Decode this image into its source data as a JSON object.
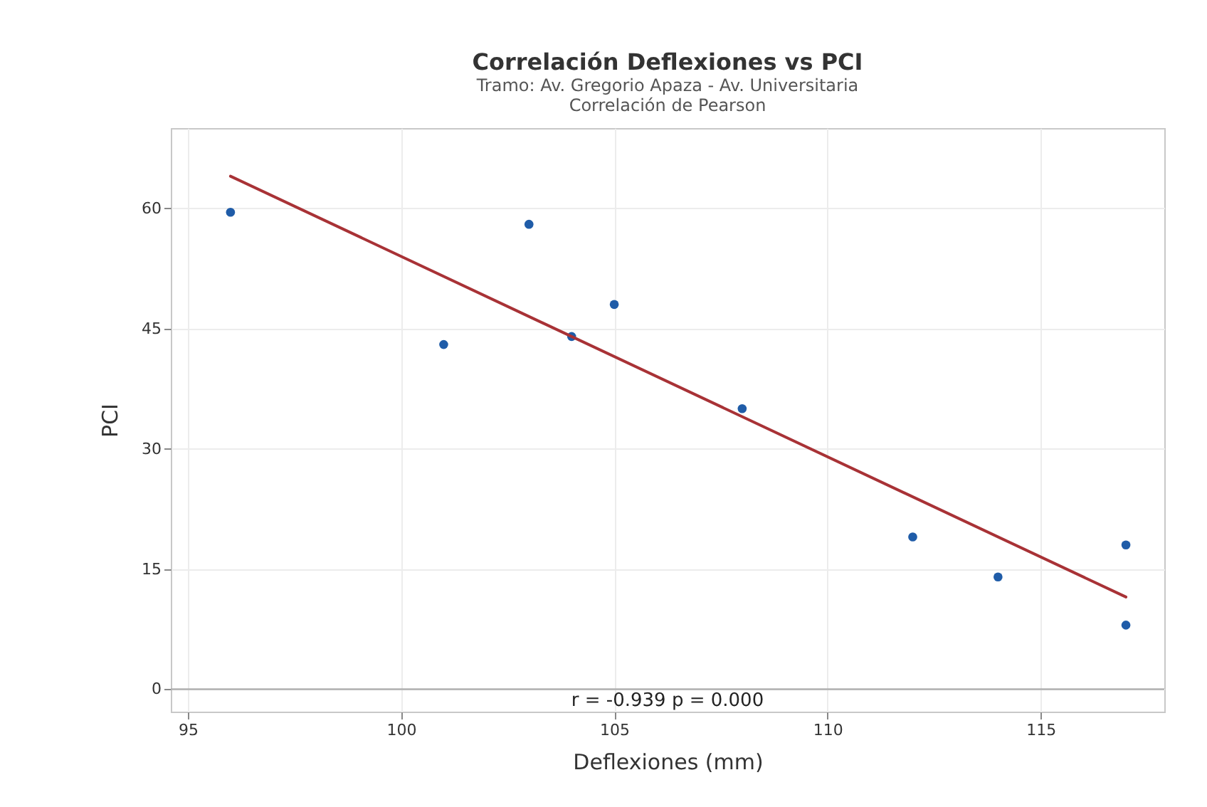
{
  "chart_data": {
    "type": "scatter",
    "title": "Correlación Deflexiones vs PCI",
    "subtitle": [
      "Tramo: Av. Gregorio Apaza - Av. Universitaria",
      "Correlación de Pearson"
    ],
    "xlabel": "Deflexiones (mm)",
    "ylabel": "PCI",
    "xlim": [
      94.6,
      117.9
    ],
    "xticks": [
      95,
      100,
      105,
      110,
      115
    ],
    "ylim": [
      -2.8,
      70
    ],
    "yticks": [
      0,
      15,
      30,
      45,
      60
    ],
    "grid": true,
    "series": [
      {
        "marker": "circle",
        "color": "#1f5ca8",
        "x": [
          96,
          101,
          103,
          104,
          105,
          108,
          112,
          114,
          117,
          117
        ],
        "values": [
          59.5,
          43,
          58,
          44,
          48,
          35,
          19,
          14,
          18,
          8
        ]
      },
      {
        "type": "line",
        "color": "#a83236",
        "x": [
          96,
          117
        ],
        "values": [
          64,
          11.5
        ],
        "line_style": "solid"
      }
    ],
    "ref_lines": [
      {
        "axis": "y",
        "value": 0,
        "color": "#b0b0b0"
      }
    ],
    "annotations": [
      "r = -0.939  p = 0.000"
    ]
  }
}
